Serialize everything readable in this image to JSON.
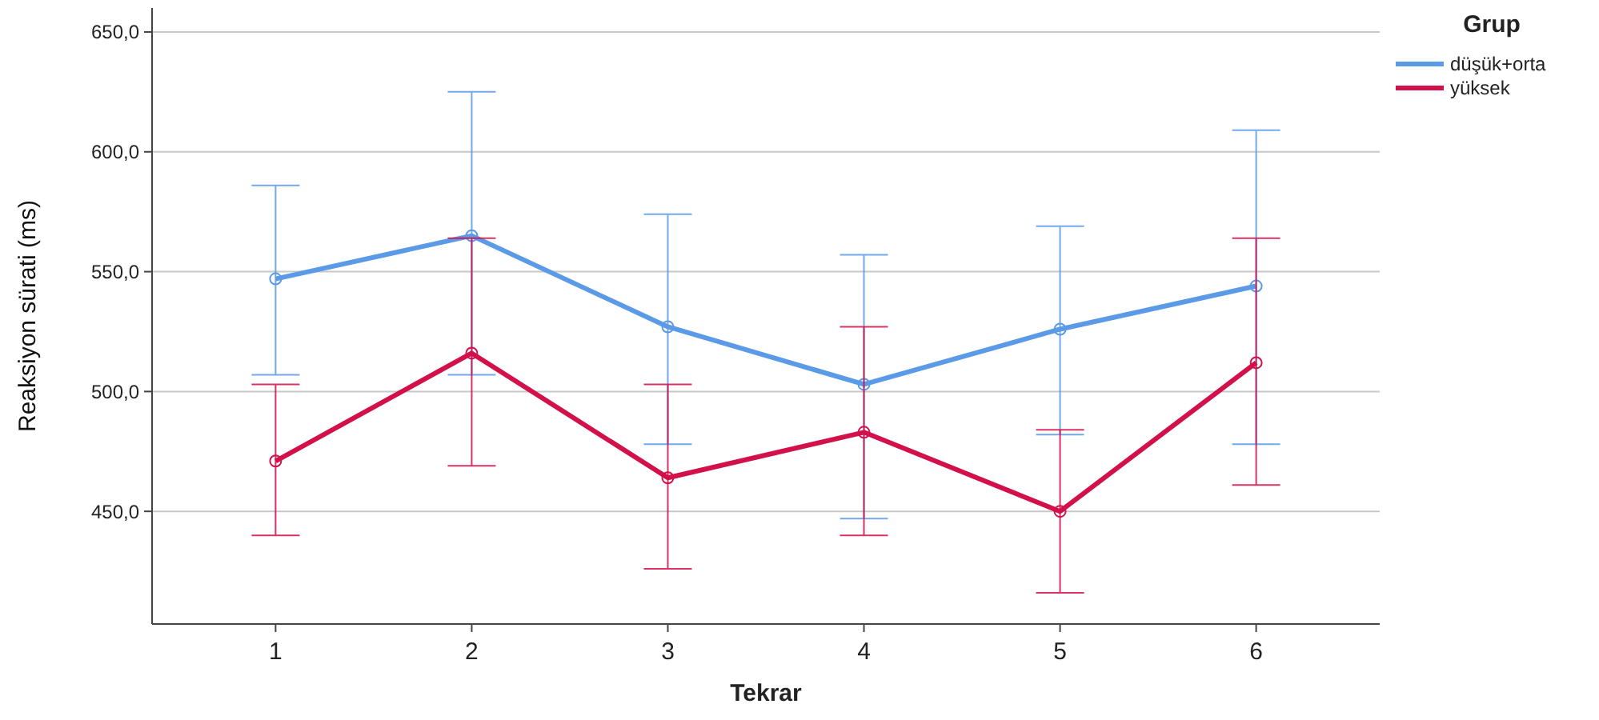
{
  "chart_data": {
    "type": "line",
    "xlabel": "Tekrar",
    "ylabel": "Reaksiyon sürati (ms)",
    "legend_title": "Grup",
    "categories": [
      "1",
      "2",
      "3",
      "4",
      "5",
      "6"
    ],
    "series": [
      {
        "name": "düşük+orta",
        "color": "#5b9ae6",
        "values": [
          547,
          565,
          527,
          503,
          526,
          544
        ],
        "errors": [
          [
            507,
            586
          ],
          [
            507,
            625
          ],
          [
            478,
            574
          ],
          [
            447,
            557
          ],
          [
            482,
            569
          ],
          [
            478,
            609
          ]
        ]
      },
      {
        "name": "yüksek",
        "color": "#d2104a",
        "values": [
          471,
          516,
          464,
          483,
          450,
          512
        ],
        "errors": [
          [
            440,
            503
          ],
          [
            469,
            564
          ],
          [
            426,
            503
          ],
          [
            440,
            527
          ],
          [
            416,
            484
          ],
          [
            461,
            564
          ]
        ]
      }
    ],
    "ylim": [
      403,
      660
    ],
    "yticks": [
      {
        "value": 450,
        "label": "450,0"
      },
      {
        "value": 500,
        "label": "500,0"
      },
      {
        "value": 550,
        "label": "550,0"
      },
      {
        "value": 600,
        "label": "600,0"
      },
      {
        "value": 650,
        "label": "650,0"
      }
    ],
    "grid": "y",
    "legend": "top right",
    "marker": "circle",
    "line_style": "solid"
  }
}
